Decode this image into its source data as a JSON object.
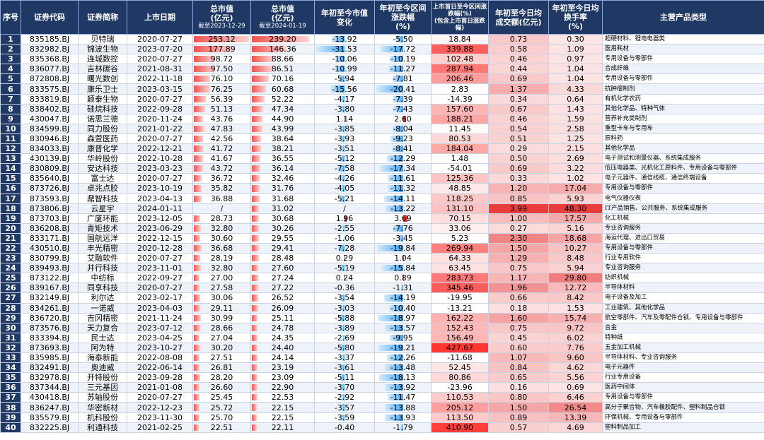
{
  "colors": {
    "header_bg": "#1f3864",
    "mkt_bar": "#ef5350",
    "pos_bar": "#e53935",
    "neg_bar": "#42a5f5",
    "heat_high": "#e53935",
    "heat_low": "#fde7e7"
  },
  "headers": {
    "idx": "序号",
    "code": "证券代码",
    "name": "证券简称",
    "listing": "上市日期",
    "mcap1": "总市值",
    "mcap1_unit": "(亿元)",
    "mcap1_sub": "截至2023-12-29",
    "mcap2": "总市值",
    "mcap2_unit": "(亿元)",
    "mcap2_sub": "截至2024-01-19",
    "mcap_chg": "年初至今市值变化",
    "interval": "年初至今区间涨跌幅",
    "interval_unit": "(%)",
    "first_day": "上市首日至今区间涨跌幅(%)",
    "first_day_sub": "(包含上市首日涨跌幅)",
    "turnover": "年初至今日均成交额(亿元)",
    "rate": "年初至今日均换手率",
    "rate_unit": "(%)",
    "product": "主营产品类型"
  },
  "rows": [
    [
      "1",
      "835185.BJ",
      "贝特瑞",
      "2020-07-27",
      "253.12",
      "239.20",
      "-13.92",
      "-5.50",
      "18.84",
      "0.73",
      "0.30",
      "超硬材料、锂电电器类"
    ],
    [
      "2",
      "832982.BJ",
      "锦波生物",
      "2023-07-20",
      "177.89",
      "146.36",
      "-31.53",
      "-17.72",
      "339.88",
      "0.58",
      "1.09",
      "医用耗材"
    ],
    [
      "3",
      "835368.BJ",
      "连城数控",
      "2020-07-27",
      "98.72",
      "88.66",
      "-10.06",
      "-10.19",
      "102.48",
      "0.46",
      "0.97",
      "专用设备与零部件"
    ],
    [
      "4",
      "836077.BJ",
      "吉林碳谷",
      "2021-08-31",
      "97.50",
      "86.51",
      "-10.99",
      "-11.27",
      "287.94",
      "0.44",
      "1.04",
      "合成纤维"
    ],
    [
      "5",
      "872808.BJ",
      "曙光数创",
      "2022-11-18",
      "76.10",
      "70.16",
      "-5.94",
      "-7.81",
      "206.46",
      "0.69",
      "1.04",
      "专用设备与零部件"
    ],
    [
      "6",
      "833575.BJ",
      "康乐卫士",
      "2023-03-15",
      "76.25",
      "60.68",
      "-15.56",
      "-20.41",
      "2.83",
      "1.37",
      "4.33",
      "抗肿瘤制剂"
    ],
    [
      "7",
      "833819.BJ",
      "颖泰生物",
      "2020-07-27",
      "56.39",
      "52.22",
      "-4.17",
      "-7.39",
      "-14.39",
      "0.34",
      "0.64",
      "有机化学农药"
    ],
    [
      "8",
      "838402.BJ",
      "硅烷科技",
      "2022-09-28",
      "51.13",
      "47.34",
      "-3.80",
      "-7.43",
      "157.60",
      "0.67",
      "1.43",
      "其他化学品、特种气体"
    ],
    [
      "9",
      "430047.BJ",
      "诺思兰德",
      "2020-11-24",
      "43.76",
      "44.90",
      "1.14",
      "2.60",
      "188.21",
      "0.46",
      "1.59",
      "营养补充类制剂"
    ],
    [
      "10",
      "834599.BJ",
      "同力股份",
      "2021-01-22",
      "47.83",
      "43.99",
      "-3.85",
      "-8.04",
      "11.45",
      "0.54",
      "2.58",
      "重型卡车与专用车"
    ],
    [
      "11",
      "830946.BJ",
      "森萱医药",
      "2020-07-27",
      "42.56",
      "38.64",
      "-3.93",
      "-9.23",
      "80.53",
      "0.51",
      "1.25",
      "原料药"
    ],
    [
      "12",
      "834033.BJ",
      "康普化学",
      "2022-12-21",
      "41.72",
      "38.21",
      "-3.51",
      "-8.41",
      "184.04",
      "0.29",
      "2.15",
      "其他化学品"
    ],
    [
      "13",
      "430139.BJ",
      "华岭股份",
      "2022-10-28",
      "41.67",
      "36.55",
      "-5.12",
      "-12.29",
      "1.48",
      "0.50",
      "2.69",
      "电子测试和测量仪器、系统集成服务"
    ],
    [
      "14",
      "830809.BJ",
      "安达科技",
      "2023-03-23",
      "43.72",
      "36.14",
      "-7.58",
      "-17.34",
      "-54.01",
      "0.69",
      "3.22",
      "低压电器类、光机化工原料件、专用设备与零部件"
    ],
    [
      "15",
      "835640.BJ",
      "富士达",
      "2020-07-27",
      "36.72",
      "32.46",
      "-4.26",
      "-11.61",
      "125.36",
      "0.33",
      "1.02",
      "电子元器件、通信线缆、通信终端设备"
    ],
    [
      "16",
      "873726.BJ",
      "卓兆点胶",
      "2023-10-19",
      "35.82",
      "31.76",
      "-4.05",
      "-11.32",
      "48.85",
      "1.20",
      "17.04",
      "专用设备与零部件"
    ],
    [
      "17",
      "873593.BJ",
      "鼎智科技",
      "2023-04-13",
      "36.88",
      "31.68",
      "-5.21",
      "-14.11",
      "118.25",
      "0.85",
      "5.93",
      "电气仪器仪表"
    ],
    [
      "18",
      "873806.BJ",
      "云星宇",
      "2024-01-11",
      "/",
      "31.02",
      "/",
      "-13.22",
      "131.10",
      "3.99",
      "48.30",
      "IT产品销售、公共服务、系统集成服务"
    ],
    [
      "19",
      "873703.BJ",
      "广厦环能",
      "2023-12-05",
      "28.73",
      "30.68",
      "1.96",
      "3.69",
      "70.15",
      "1.00",
      "17.57",
      "化工机械"
    ],
    [
      "20",
      "836208.BJ",
      "青矩技术",
      "2023-06-29",
      "32.80",
      "30.26",
      "-2.55",
      "-7.76",
      "33.06",
      "0.27",
      "5.16",
      "专业咨询服务"
    ],
    [
      "21",
      "833171.BJ",
      "国航远洋",
      "2022-12-15",
      "30.60",
      "29.55",
      "-1.06",
      "-3.45",
      "5.23",
      "2.30",
      "18.68",
      "海运代理、进出口贸易"
    ],
    [
      "22",
      "430510.BJ",
      "丰光精密",
      "2020-12-28",
      "36.68",
      "29.41",
      "-7.28",
      "-19.84",
      "269.94",
      "1.50",
      "10.27",
      "专用设备与零部件"
    ],
    [
      "23",
      "830799.BJ",
      "艾融软件",
      "2020-07-27",
      "28.19",
      "28.48",
      "0.29",
      "1.04",
      "64.33",
      "1.29",
      "8.48",
      "行业专用软件"
    ],
    [
      "24",
      "839493.BJ",
      "并行科技",
      "2023-11-01",
      "32.80",
      "27.60",
      "-5.19",
      "-15.84",
      "63.45",
      "0.75",
      "5.94",
      "专业咨询服务"
    ],
    [
      "25",
      "873122.BJ",
      "中纺标",
      "2022-09-27",
      "27.00",
      "27.24",
      "0.24",
      "0.89",
      "283.73",
      "1.17",
      "29.80",
      "纺织机械"
    ],
    [
      "26",
      "839167.BJ",
      "同享科技",
      "2020-07-27",
      "27.58",
      "27.22",
      "-0.36",
      "-1.31",
      "345.46",
      "1.96",
      "12.72",
      "半导体材料"
    ],
    [
      "27",
      "832149.BJ",
      "利尔达",
      "2023-02-17",
      "30.06",
      "26.52",
      "-3.54",
      "-14.19",
      "-19.95",
      "0.66",
      "8.42",
      "电子设备及加工"
    ],
    [
      "28",
      "834261.BJ",
      "一诺威",
      "2023-04-03",
      "29.11",
      "26.09",
      "-3.03",
      "-10.40",
      "-13.21",
      "0.18",
      "1.53",
      "工业建筑、其他化学品"
    ],
    [
      "29",
      "836720.BJ",
      "吉冈精密",
      "2021-11-24",
      "30.99",
      "25.11",
      "-5.88",
      "-18.97",
      "162.22",
      "1.60",
      "15.74",
      "航空零部件、汽车及零配件仓锁、专用设备与零部件"
    ],
    [
      "30",
      "873576.BJ",
      "天力复合",
      "2023-07-12",
      "28.66",
      "24.78",
      "-3.89",
      "-13.57",
      "152.43",
      "0.75",
      "9.72",
      "合金"
    ],
    [
      "31",
      "833394.BJ",
      "民士达",
      "2023-04-25",
      "27.04",
      "24.35",
      "-2.69",
      "-9.95",
      "156.49",
      "0.45",
      "6.02",
      "特种纸"
    ],
    [
      "32",
      "873693.BJ",
      "阿为特",
      "2023-10-27",
      "30.20",
      "24.40",
      "-5.80",
      "-19.21",
      "427.67",
      "0.60",
      "7.76",
      "五金加工机械"
    ],
    [
      "33",
      "835985.BJ",
      "海泰新能",
      "2022-08-08",
      "27.51",
      "24.14",
      "-3.37",
      "-12.26",
      "-11.68",
      "1.07",
      "9.60",
      "半导体材料、专业咨询服务"
    ],
    [
      "34",
      "832491.BJ",
      "奥迪威",
      "2022-06-14",
      "26.81",
      "23.19",
      "-3.61",
      "-13.48",
      "52.45",
      "0.84",
      "4.62",
      "电子元器件"
    ],
    [
      "35",
      "832978.BJ",
      "开特股份",
      "2023-09-28",
      "28.20",
      "23.09",
      "-5.11",
      "-18.13",
      "80.86",
      "0.65",
      "5.56",
      "行业专用设备"
    ],
    [
      "36",
      "837344.BJ",
      "三元基因",
      "2021-01-08",
      "26.60",
      "22.90",
      "-3.70",
      "-13.92",
      "-23.96",
      "0.16",
      "0.69",
      "医药中间体"
    ],
    [
      "37",
      "430418.BJ",
      "苏轴股份",
      "2020-07-27",
      "25.45",
      "22.53",
      "-2.92",
      "-11.47",
      "110.53",
      "0.80",
      "6.46",
      "专用设备与零部件"
    ],
    [
      "38",
      "836247.BJ",
      "华密新材",
      "2022-12-23",
      "25.72",
      "22.15",
      "-3.57",
      "-13.88",
      "205.12",
      "1.50",
      "26.54",
      "高分子聚合物、汽车橡胶配件、塑料制品仓锁"
    ],
    [
      "39",
      "835579.BJ",
      "机科股份",
      "2023-11-30",
      "25.70",
      "22.15",
      "-3.59",
      "-13.93",
      "113.50",
      "0.89",
      "13.39",
      "环保机械、专用设备与零部件"
    ],
    [
      "40",
      "832225.BJ",
      "利通科技",
      "2021-02-25",
      "22.51",
      "22.11",
      "-0.40",
      "-1.79",
      "410.90",
      "0.57",
      "4.69",
      "塑料制品加工"
    ]
  ]
}
